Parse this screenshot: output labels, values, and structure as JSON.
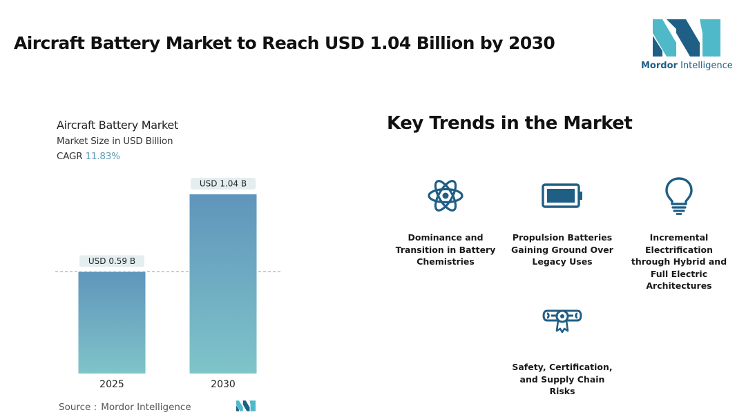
{
  "page": {
    "title": "Aircraft Battery Market to Reach USD 1.04 Billion by 2030"
  },
  "brand": {
    "name_bold": "Mordor",
    "name_rest": " Intelligence",
    "colors": {
      "dark": "#1f5e85",
      "light": "#4fb8c9"
    }
  },
  "chart_data": {
    "type": "bar",
    "title": "Aircraft Battery Market",
    "subtitle": "Market Size in USD Billion",
    "cagr_label": "CAGR",
    "cagr_value": "11.83%",
    "categories": [
      "2025",
      "2030"
    ],
    "values": [
      0.59,
      1.04
    ],
    "data_labels": [
      "USD 0.59 B",
      "USD 1.04 B"
    ],
    "reference_line": 0.59,
    "grid": false,
    "colors": {
      "bar_top": "#5f95bb",
      "bar_bottom": "#7fc4c9",
      "label_bg": "#e4eef0",
      "ref_line": "#6aa1b4"
    }
  },
  "source": {
    "label": "Source :",
    "value": "Mordor Intelligence"
  },
  "trends": {
    "title": "Key Trends in the Market",
    "icon_color": "#1f5e85",
    "items": [
      {
        "icon": "atom-icon",
        "label": "Dominance and Transition in Battery Chemistries"
      },
      {
        "icon": "battery-icon",
        "label": "Propulsion Batteries Gaining Ground Over Legacy Uses"
      },
      {
        "icon": "lightbulb-icon",
        "label": "Incremental Electrification through Hybrid and Full Electric Architectures"
      },
      {
        "icon": "certificate-icon",
        "label": "Safety, Certification, and Supply Chain Risks"
      }
    ]
  }
}
